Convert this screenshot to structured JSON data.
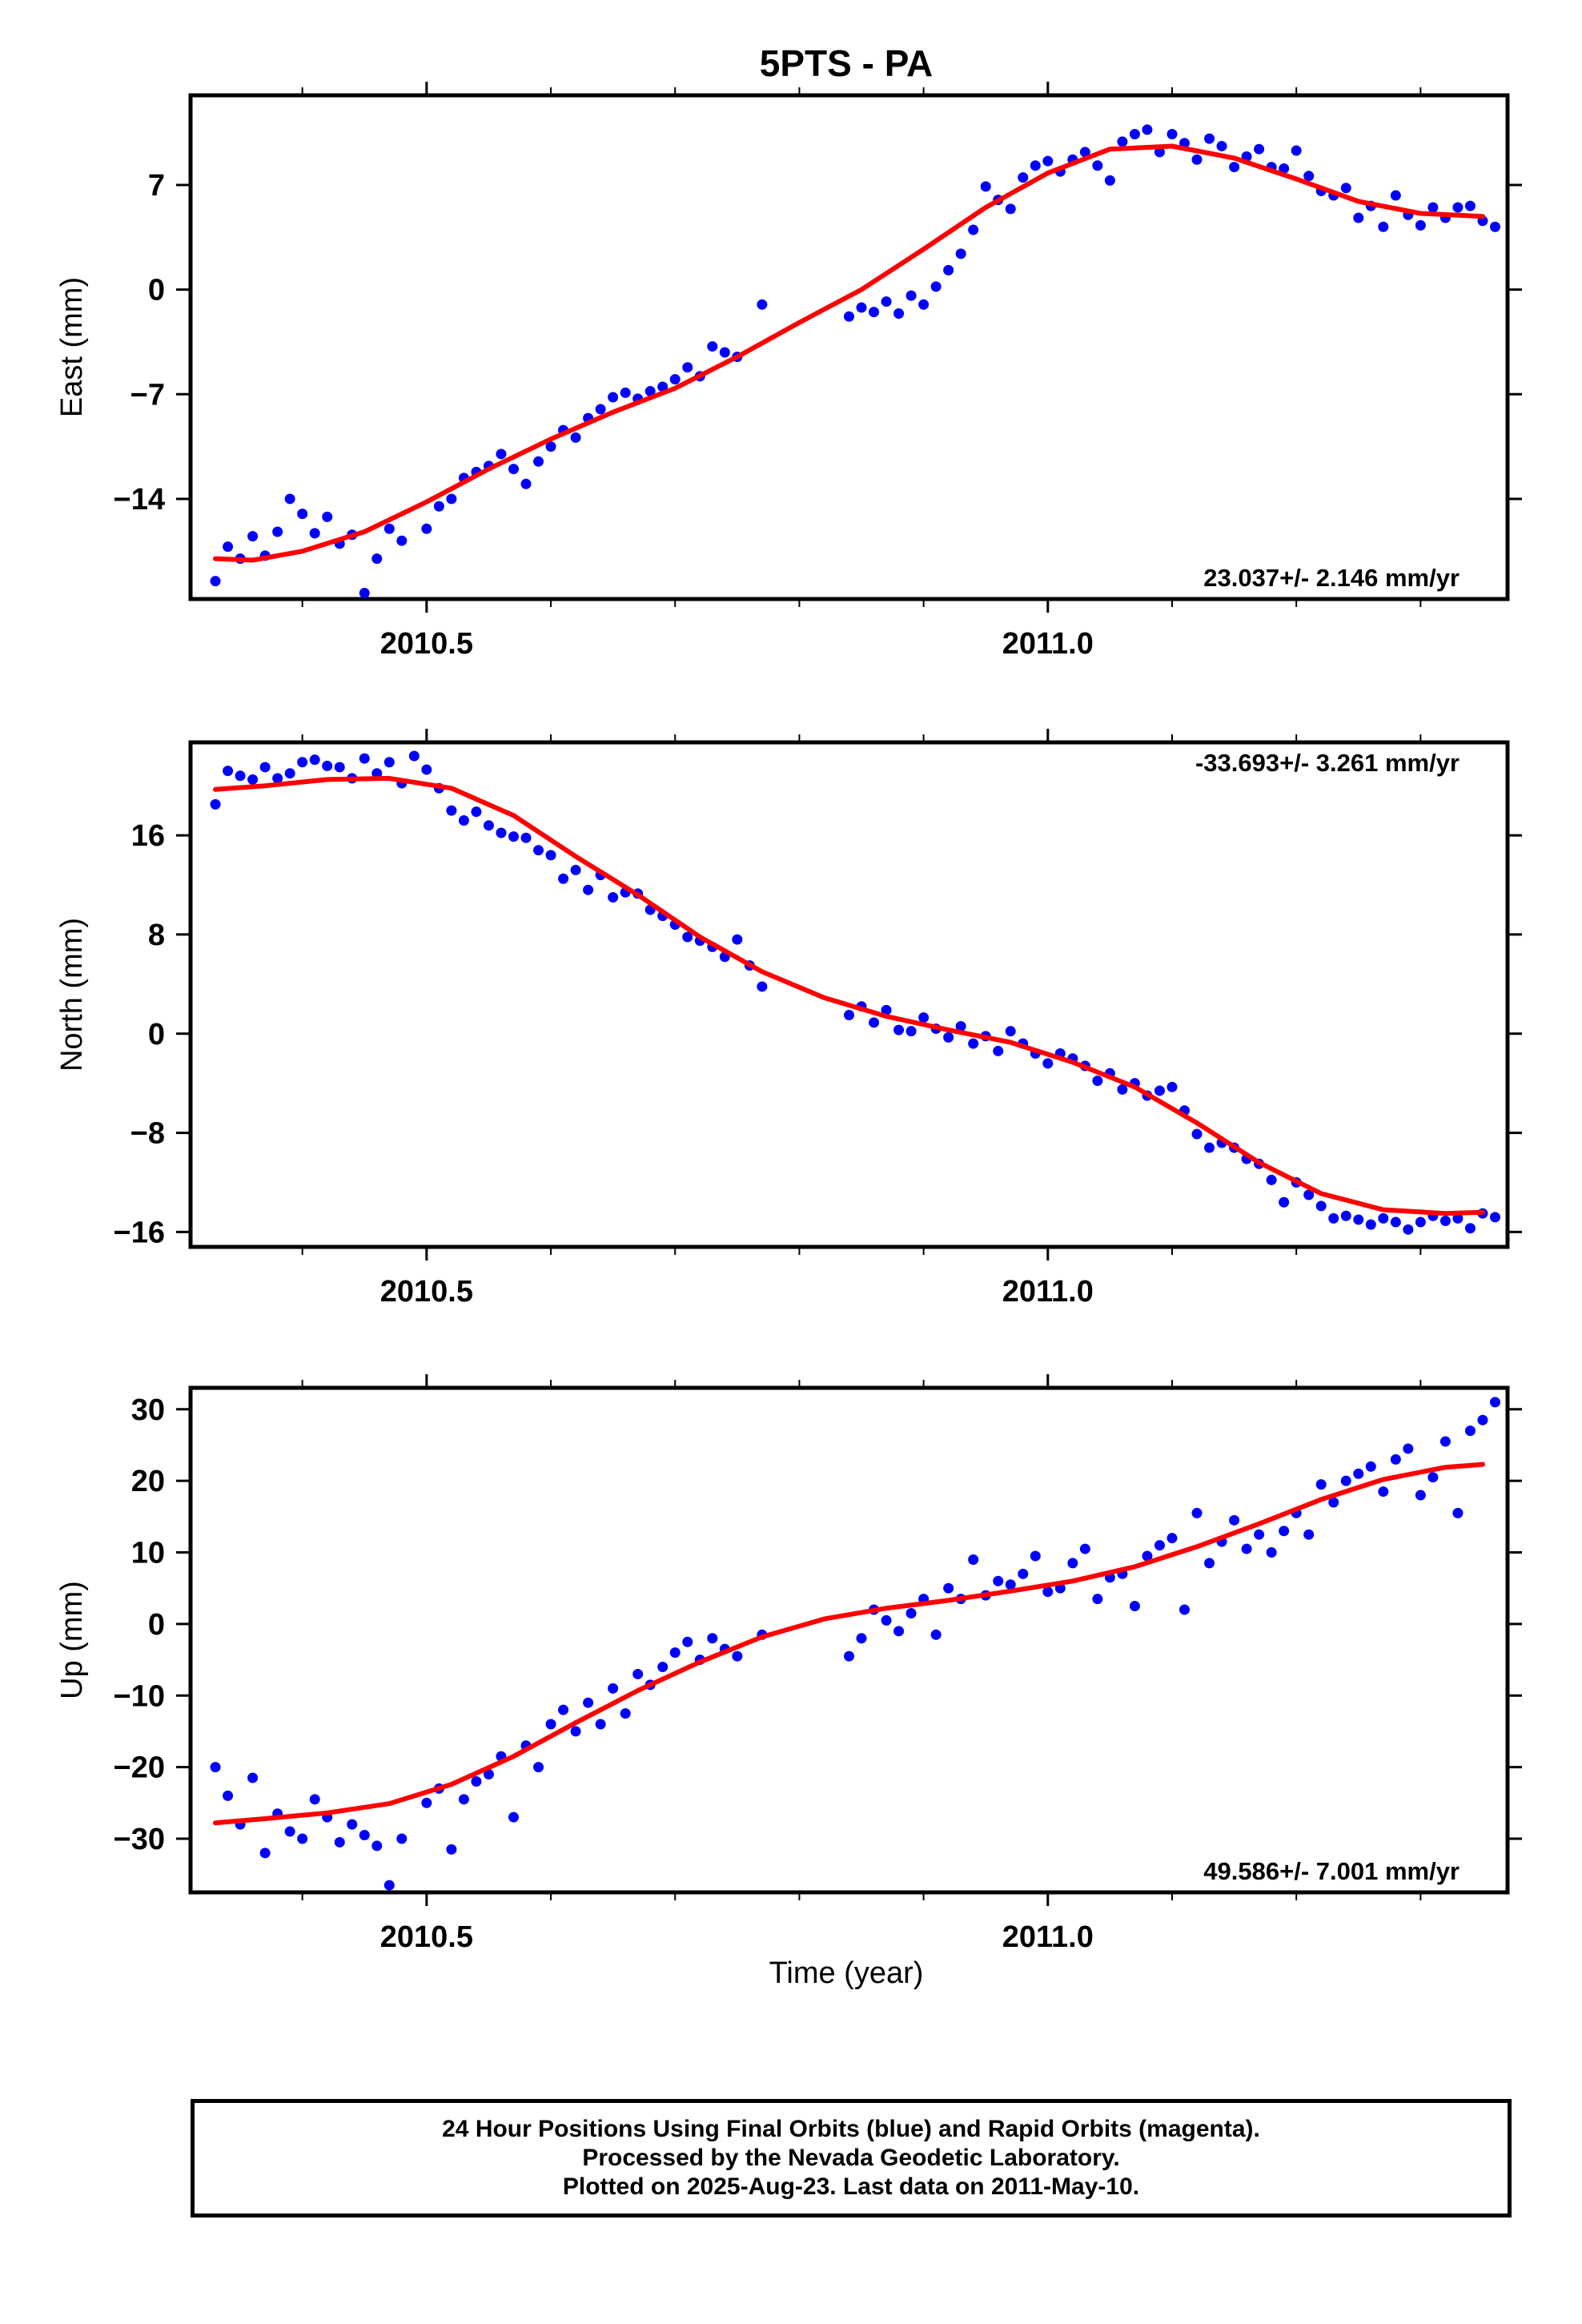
{
  "chart_data": {
    "title": "5PTS - PA",
    "type": "scatter",
    "x_range": [
      2010.31,
      2011.37
    ],
    "x_ticks": [
      "2010.5",
      "2011.0"
    ],
    "xlabel": "Time (year)",
    "data_color": "#0000ff",
    "model_color": "#ff0000",
    "panels": [
      {
        "id": "east",
        "ylabel": "East (mm)",
        "ylim": [
          -20.7,
          13.0
        ],
        "yticks": [
          -14,
          -7,
          0,
          7
        ],
        "ytick_labels": [
          "−14",
          "−7",
          "0",
          "7"
        ],
        "rate_label": "23.037+/- 2.146 mm/yr",
        "rate_position": "bottom-right",
        "model_curve": {
          "x": [
            2010.33,
            2010.36,
            2010.4,
            2010.45,
            2010.5,
            2010.55,
            2010.6,
            2010.65,
            2010.7,
            2010.75,
            2010.8,
            2010.85,
            2010.9,
            2010.95,
            2011.0,
            2011.05,
            2011.1,
            2011.15,
            2011.2,
            2011.25,
            2011.3,
            2011.35
          ],
          "y": [
            -18.0,
            -18.1,
            -17.5,
            -16.2,
            -14.2,
            -12.0,
            -10.0,
            -8.2,
            -6.6,
            -4.5,
            -2.2,
            0.0,
            2.7,
            5.5,
            7.8,
            9.4,
            9.6,
            8.8,
            7.4,
            5.9,
            5.1,
            4.9
          ]
        },
        "points": {
          "x": [
            2010.33,
            2010.34,
            2010.35,
            2010.36,
            2010.37,
            2010.38,
            2010.39,
            2010.4,
            2010.41,
            2010.42,
            2010.43,
            2010.44,
            2010.45,
            2010.46,
            2010.47,
            2010.48,
            2010.5,
            2010.51,
            2010.52,
            2010.53,
            2010.54,
            2010.55,
            2010.56,
            2010.57,
            2010.58,
            2010.59,
            2010.6,
            2010.61,
            2010.62,
            2010.63,
            2010.64,
            2010.65,
            2010.66,
            2010.67,
            2010.68,
            2010.69,
            2010.7,
            2010.71,
            2010.72,
            2010.73,
            2010.74,
            2010.75,
            2010.77,
            2010.84,
            2010.85,
            2010.86,
            2010.87,
            2010.88,
            2010.89,
            2010.9,
            2010.91,
            2010.92,
            2010.93,
            2010.94,
            2010.95,
            2010.96,
            2010.97,
            2010.98,
            2010.99,
            2011.0,
            2011.01,
            2011.02,
            2011.03,
            2011.04,
            2011.05,
            2011.06,
            2011.07,
            2011.08,
            2011.09,
            2011.1,
            2011.11,
            2011.12,
            2011.13,
            2011.14,
            2011.15,
            2011.16,
            2011.17,
            2011.18,
            2011.19,
            2011.2,
            2011.21,
            2011.22,
            2011.23,
            2011.24,
            2011.25,
            2011.26,
            2011.27,
            2011.28,
            2011.29,
            2011.3,
            2011.31,
            2011.32,
            2011.33,
            2011.34,
            2011.35,
            2011.36
          ],
          "y": [
            -19.5,
            -17.2,
            -18.0,
            -16.5,
            -17.8,
            -16.2,
            -14.0,
            -15.0,
            -16.3,
            -15.2,
            -17.0,
            -16.4,
            -20.3,
            -18.0,
            -16.0,
            -16.8,
            -16.0,
            -14.5,
            -14.0,
            -12.6,
            -12.2,
            -11.8,
            -11.0,
            -12.0,
            -13.0,
            -11.5,
            -10.5,
            -9.4,
            -9.9,
            -8.6,
            -8.0,
            -7.2,
            -6.9,
            -7.3,
            -6.8,
            -6.5,
            -6.0,
            -5.2,
            -5.8,
            -3.8,
            -4.2,
            -4.5,
            -1.0,
            -1.8,
            -1.2,
            -1.5,
            -0.8,
            -1.6,
            -0.4,
            -1.0,
            0.2,
            1.3,
            2.4,
            4.0,
            6.9,
            6.0,
            5.4,
            7.5,
            8.3,
            8.6,
            7.9,
            8.7,
            9.2,
            8.3,
            7.3,
            9.9,
            10.4,
            10.7,
            9.2,
            10.4,
            9.8,
            8.7,
            10.1,
            9.6,
            8.2,
            8.9,
            9.4,
            8.2,
            8.1,
            9.3,
            7.6,
            6.6,
            6.3,
            6.8,
            4.8,
            5.6,
            4.2,
            6.3,
            5.0,
            4.3,
            5.5,
            4.8,
            5.5,
            5.6,
            4.6,
            4.2
          ]
        }
      },
      {
        "id": "north",
        "ylabel": "North (mm)",
        "ylim": [
          -17.2,
          23.5
        ],
        "yticks": [
          -16,
          -8,
          0,
          8,
          16
        ],
        "ytick_labels": [
          "−16",
          "−8",
          "0",
          "8",
          "16"
        ],
        "rate_label": "-33.693+/- 3.261 mm/yr",
        "rate_position": "top-right",
        "model_curve": {
          "x": [
            2010.33,
            2010.37,
            2010.42,
            2010.47,
            2010.52,
            2010.57,
            2010.62,
            2010.67,
            2010.72,
            2010.77,
            2010.82,
            2010.87,
            2010.92,
            2010.97,
            2011.02,
            2011.07,
            2011.12,
            2011.17,
            2011.22,
            2011.27,
            2011.32,
            2011.35
          ],
          "y": [
            19.7,
            20.0,
            20.5,
            20.6,
            19.8,
            17.6,
            14.3,
            11.2,
            7.8,
            5.0,
            2.9,
            1.4,
            0.3,
            -0.7,
            -2.3,
            -4.3,
            -7.2,
            -10.4,
            -12.9,
            -14.2,
            -14.5,
            -14.4
          ]
        },
        "points": {
          "x": [
            2010.33,
            2010.34,
            2010.35,
            2010.36,
            2010.37,
            2010.38,
            2010.39,
            2010.4,
            2010.41,
            2010.42,
            2010.43,
            2010.44,
            2010.45,
            2010.46,
            2010.47,
            2010.48,
            2010.49,
            2010.5,
            2010.51,
            2010.52,
            2010.53,
            2010.54,
            2010.55,
            2010.56,
            2010.57,
            2010.58,
            2010.59,
            2010.6,
            2010.61,
            2010.62,
            2010.63,
            2010.64,
            2010.65,
            2010.66,
            2010.67,
            2010.68,
            2010.69,
            2010.7,
            2010.71,
            2010.72,
            2010.73,
            2010.74,
            2010.75,
            2010.76,
            2010.77,
            2010.84,
            2010.85,
            2010.86,
            2010.87,
            2010.88,
            2010.89,
            2010.9,
            2010.91,
            2010.92,
            2010.93,
            2010.94,
            2010.95,
            2010.96,
            2010.97,
            2010.98,
            2010.99,
            2011.0,
            2011.01,
            2011.02,
            2011.03,
            2011.04,
            2011.05,
            2011.06,
            2011.07,
            2011.08,
            2011.09,
            2011.1,
            2011.11,
            2011.12,
            2011.13,
            2011.14,
            2011.15,
            2011.16,
            2011.17,
            2011.18,
            2011.19,
            2011.2,
            2011.21,
            2011.22,
            2011.23,
            2011.24,
            2011.25,
            2011.26,
            2011.27,
            2011.28,
            2011.29,
            2011.3,
            2011.31,
            2011.32,
            2011.33,
            2011.34,
            2011.35,
            2011.36
          ],
          "y": [
            18.5,
            21.2,
            20.8,
            20.5,
            21.5,
            20.6,
            21.0,
            21.9,
            22.1,
            21.6,
            21.5,
            20.6,
            22.2,
            21.0,
            21.9,
            20.2,
            22.4,
            21.3,
            19.8,
            18.0,
            17.2,
            17.9,
            16.8,
            16.2,
            15.9,
            15.8,
            14.8,
            14.4,
            12.5,
            13.2,
            11.6,
            12.8,
            11.0,
            11.4,
            11.3,
            10.0,
            9.5,
            8.8,
            7.8,
            7.5,
            7.0,
            6.2,
            7.6,
            5.5,
            3.8,
            1.5,
            2.2,
            0.9,
            1.9,
            0.3,
            0.2,
            1.3,
            0.4,
            -0.3,
            0.6,
            -0.8,
            -0.2,
            -1.4,
            0.2,
            -0.8,
            -1.6,
            -2.4,
            -1.6,
            -2.0,
            -2.6,
            -3.8,
            -3.2,
            -4.5,
            -4.0,
            -5.0,
            -4.6,
            -4.3,
            -6.2,
            -8.1,
            -9.2,
            -8.8,
            -9.2,
            -10.1,
            -10.5,
            -11.8,
            -13.6,
            -12.0,
            -13.0,
            -13.9,
            -14.9,
            -14.7,
            -15.0,
            -15.4,
            -14.9,
            -15.2,
            -15.8,
            -15.2,
            -14.7,
            -15.1,
            -14.9,
            -15.7,
            -14.5,
            -14.8
          ]
        }
      },
      {
        "id": "up",
        "ylabel": "Up (mm)",
        "ylim": [
          -37.5,
          33.0
        ],
        "yticks": [
          -30,
          -20,
          -10,
          0,
          10,
          20,
          30
        ],
        "ytick_labels": [
          "−30",
          "−20",
          "−10",
          "0",
          "10",
          "20",
          "30"
        ],
        "rate_label": "49.586+/- 7.001 mm/yr",
        "rate_position": "bottom-right",
        "model_curve": {
          "x": [
            2010.33,
            2010.37,
            2010.42,
            2010.47,
            2010.52,
            2010.57,
            2010.62,
            2010.67,
            2010.72,
            2010.77,
            2010.82,
            2010.87,
            2010.92,
            2010.97,
            2011.02,
            2011.07,
            2011.12,
            2011.17,
            2011.22,
            2011.27,
            2011.32,
            2011.35
          ],
          "y": [
            -27.8,
            -27.2,
            -26.4,
            -25.1,
            -22.4,
            -18.5,
            -13.8,
            -9.3,
            -5.3,
            -1.8,
            0.7,
            2.2,
            3.3,
            4.6,
            6.0,
            8.0,
            10.8,
            14.0,
            17.4,
            20.2,
            21.9,
            22.3
          ]
        },
        "points": {
          "x": [
            2010.33,
            2010.34,
            2010.35,
            2010.36,
            2010.37,
            2010.38,
            2010.39,
            2010.4,
            2010.41,
            2010.42,
            2010.43,
            2010.44,
            2010.45,
            2010.46,
            2010.47,
            2010.48,
            2010.5,
            2010.51,
            2010.52,
            2010.53,
            2010.54,
            2010.55,
            2010.56,
            2010.57,
            2010.58,
            2010.59,
            2010.6,
            2010.61,
            2010.62,
            2010.63,
            2010.64,
            2010.65,
            2010.66,
            2010.67,
            2010.68,
            2010.69,
            2010.7,
            2010.71,
            2010.72,
            2010.73,
            2010.74,
            2010.75,
            2010.77,
            2010.84,
            2010.85,
            2010.86,
            2010.87,
            2010.88,
            2010.89,
            2010.9,
            2010.91,
            2010.92,
            2010.93,
            2010.94,
            2010.95,
            2010.96,
            2010.97,
            2010.98,
            2010.99,
            2011.0,
            2011.01,
            2011.02,
            2011.03,
            2011.04,
            2011.05,
            2011.06,
            2011.07,
            2011.08,
            2011.09,
            2011.1,
            2011.11,
            2011.12,
            2011.13,
            2011.14,
            2011.15,
            2011.16,
            2011.17,
            2011.18,
            2011.19,
            2011.2,
            2011.21,
            2011.22,
            2011.23,
            2011.24,
            2011.25,
            2011.26,
            2011.27,
            2011.28,
            2011.29,
            2011.3,
            2011.31,
            2011.32,
            2011.33,
            2011.34,
            2011.35,
            2011.36
          ],
          "y": [
            -20.0,
            -24.0,
            -28.0,
            -21.5,
            -32.0,
            -26.5,
            -29.0,
            -30.0,
            -24.5,
            -27.0,
            -30.5,
            -28.0,
            -29.5,
            -31.0,
            -36.5,
            -30.0,
            -25.0,
            -23.0,
            -31.5,
            -24.5,
            -22.0,
            -21.0,
            -18.5,
            -27.0,
            -17.0,
            -20.0,
            -14.0,
            -12.0,
            -15.0,
            -11.0,
            -14.0,
            -9.0,
            -12.5,
            -7.0,
            -8.5,
            -6.0,
            -4.0,
            -2.5,
            -5.0,
            -2.0,
            -3.5,
            -4.5,
            -1.5,
            -4.5,
            -2.0,
            2.0,
            0.5,
            -1.0,
            1.5,
            3.5,
            -1.5,
            5.0,
            3.5,
            9.0,
            4.0,
            6.0,
            5.5,
            7.0,
            9.5,
            4.5,
            5.0,
            8.5,
            10.5,
            3.5,
            6.5,
            7.0,
            2.5,
            9.5,
            11.0,
            12.0,
            2.0,
            15.5,
            8.5,
            11.5,
            14.5,
            10.5,
            12.5,
            10.0,
            13.0,
            15.5,
            12.5,
            19.5,
            17.0,
            20.0,
            21.0,
            22.0,
            18.5,
            23.0,
            24.5,
            18.0,
            20.5,
            25.5,
            15.5,
            27.0,
            28.5,
            31.0
          ]
        }
      }
    ]
  },
  "caption": {
    "line1": "24 Hour Positions Using Final Orbits (blue) and Rapid Orbits (magenta).",
    "line2": "Processed by the Nevada Geodetic Laboratory.",
    "line3": "Plotted on 2025-Aug-23. Last data on 2011-May-10."
  }
}
